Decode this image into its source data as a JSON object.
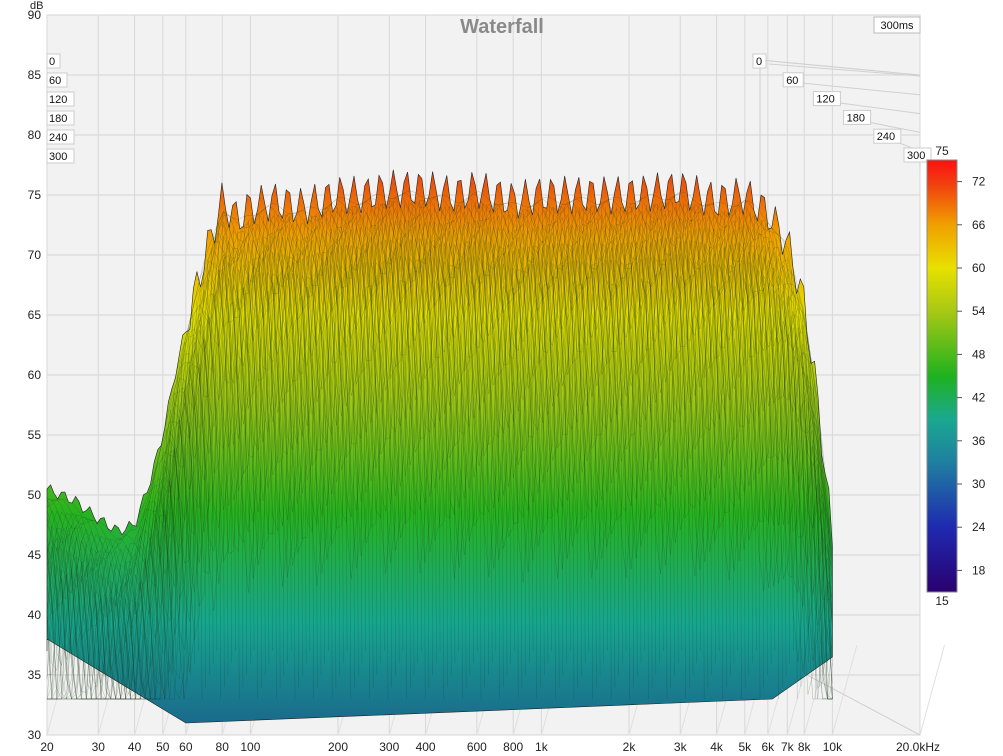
{
  "chart_data": {
    "type": "area",
    "title": "Waterfall",
    "time_window_label": "300ms",
    "ylabel": "dB",
    "xlabel": "",
    "x_unit": "kHz",
    "x_scale": "log",
    "xlim": [
      20,
      20000
    ],
    "ylim": [
      30,
      90
    ],
    "y_ticks": [
      "30",
      "35",
      "40",
      "45",
      "50",
      "55",
      "60",
      "65",
      "70",
      "75",
      "80",
      "85",
      "90"
    ],
    "x_ticks": [
      {
        "freq": 20,
        "label": "20"
      },
      {
        "freq": 30,
        "label": "30"
      },
      {
        "freq": 40,
        "label": "40"
      },
      {
        "freq": 50,
        "label": "50"
      },
      {
        "freq": 60,
        "label": "60"
      },
      {
        "freq": 80,
        "label": "80"
      },
      {
        "freq": 100,
        "label": "100"
      },
      {
        "freq": 200,
        "label": "200"
      },
      {
        "freq": 300,
        "label": "300"
      },
      {
        "freq": 400,
        "label": "400"
      },
      {
        "freq": 600,
        "label": "600"
      },
      {
        "freq": 800,
        "label": "800"
      },
      {
        "freq": 1000,
        "label": "1k"
      },
      {
        "freq": 2000,
        "label": "2k"
      },
      {
        "freq": 3000,
        "label": "3k"
      },
      {
        "freq": 4000,
        "label": "4k"
      },
      {
        "freq": 5000,
        "label": "5k"
      },
      {
        "freq": 6000,
        "label": "6k"
      },
      {
        "freq": 7000,
        "label": "7k"
      },
      {
        "freq": 8000,
        "label": "8k"
      },
      {
        "freq": 10000,
        "label": "10k"
      },
      {
        "freq": 20000,
        "label": "20.0kHz"
      }
    ],
    "time_ticks_ms": [
      "0",
      "60",
      "120",
      "180",
      "240",
      "300"
    ],
    "time_ticks_left": [
      "0",
      "60",
      "120",
      "180",
      "240",
      "300"
    ],
    "colorbar": {
      "min": "15",
      "max": "75",
      "ticks": [
        "18",
        "24",
        "30",
        "36",
        "42",
        "48",
        "54",
        "60",
        "66",
        "72"
      ],
      "colors": [
        "#2a0070",
        "#1f2ab0",
        "#1f7fa0",
        "#1aa890",
        "#1fb21f",
        "#a8c814",
        "#e8e000",
        "#f0a000",
        "#f03a10",
        "#ff1010"
      ]
    },
    "series": [
      {
        "freq": [
          20,
          25,
          30,
          35,
          40,
          45,
          50,
          55,
          60,
          70,
          80,
          90,
          100,
          120,
          150,
          200,
          250,
          300,
          400,
          500,
          600,
          800,
          1000,
          1500,
          2000,
          3000,
          4000,
          5000,
          6000,
          7000,
          8000,
          9000,
          10000
        ],
        "db": [
          50.5,
          49.5,
          48.0,
          47.0,
          47.5,
          51.0,
          55.0,
          60.0,
          64.0,
          70.0,
          74.5,
          73.0,
          74.0,
          74.5,
          74.0,
          75.0,
          75.0,
          75.5,
          75.5,
          75.0,
          75.5,
          74.5,
          75.0,
          75.0,
          75.0,
          75.5,
          74.5,
          75.0,
          73.5,
          71.0,
          66.0,
          57.0,
          46.0
        ]
      }
    ]
  }
}
